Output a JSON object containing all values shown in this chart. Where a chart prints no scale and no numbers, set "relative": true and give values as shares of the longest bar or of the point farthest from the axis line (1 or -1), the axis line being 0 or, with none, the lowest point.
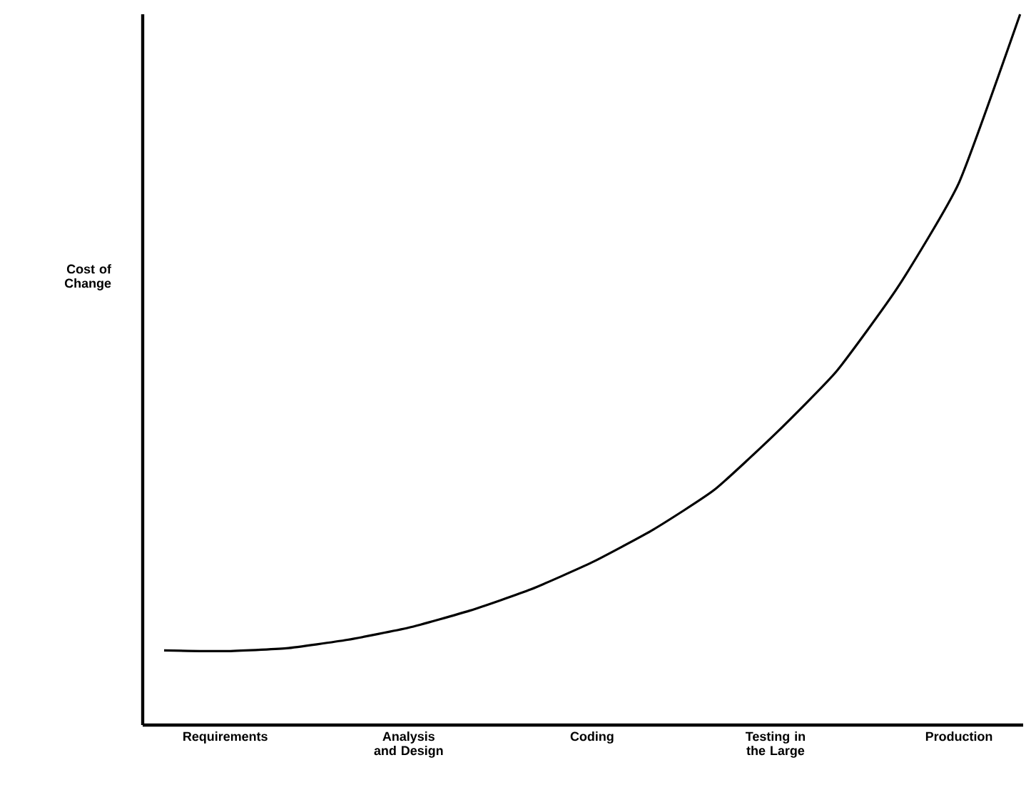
{
  "chart_data": {
    "type": "line",
    "relative": true,
    "ylabel": "Cost of Change",
    "categories": [
      null,
      "Requirements",
      null,
      null,
      "Analysis and Design",
      null,
      null,
      "Coding",
      null,
      null,
      "Testing in the Large",
      null,
      null,
      "Production",
      null
    ],
    "tick_labels": "x",
    "marker": "none",
    "line_style": "solid",
    "series": [
      {
        "color": "#000000",
        "values": [
          0.105,
          0.104,
          0.108,
          0.12,
          0.137,
          0.161,
          0.191,
          0.229,
          0.275,
          0.331,
          0.41,
          0.498,
          0.616,
          0.763,
          1.0
        ]
      }
    ]
  }
}
